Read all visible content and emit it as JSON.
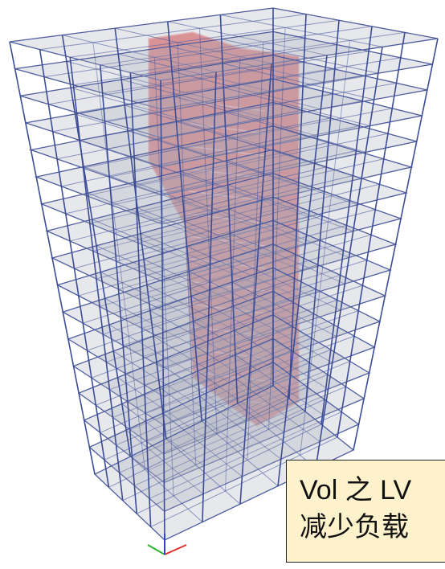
{
  "annotation": {
    "lines": [
      "Vol 之 LV",
      "减少负载"
    ]
  }
}
